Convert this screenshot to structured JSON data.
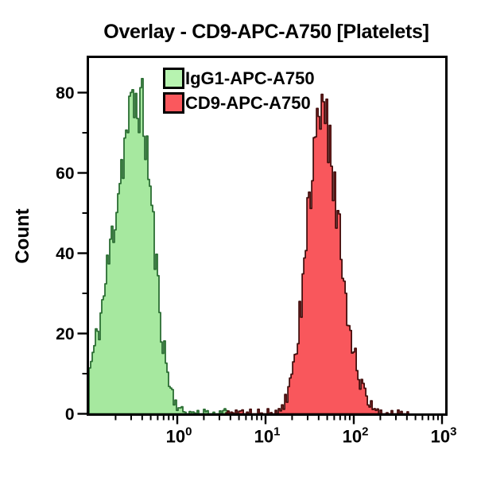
{
  "title": "Overlay - CD9-APC-A750 [Platelets]",
  "legend": {
    "items": [
      {
        "label": "IgG1-APC-A750",
        "swatch_fill": "#b7f3b0",
        "swatch_border": "#000000"
      },
      {
        "label": "CD9-APC-A750",
        "swatch_fill": "#fa585d",
        "swatch_border": "#000000"
      }
    ]
  },
  "chart_data": {
    "type": "area",
    "subtype": "flow-cytometry-histogram-overlay",
    "title": "Overlay - CD9-APC-A750 [Platelets]",
    "xlabel": "",
    "ylabel": "Count",
    "x_scale": "log10",
    "x_range_log": [
      -1,
      3.05
    ],
    "x_ticks": [
      {
        "log": 0,
        "base": "10",
        "exp": "0"
      },
      {
        "log": 1,
        "base": "10",
        "exp": "1"
      },
      {
        "log": 2,
        "base": "10",
        "exp": "2"
      },
      {
        "log": 3,
        "base": "10",
        "exp": "3"
      }
    ],
    "x_minor_decades": [
      -1,
      0,
      1,
      2
    ],
    "ylim": [
      0,
      89
    ],
    "y_major_ticks": [
      0,
      20,
      40,
      60,
      80
    ],
    "y_minor_ticks": [
      10,
      30,
      50,
      70
    ],
    "grid": false,
    "legend_position": "top-left-inside",
    "series": [
      {
        "name": "IgG1-APC-A750",
        "fill": "#a6e89f",
        "stroke": "#2b6e33",
        "range_log": [
          -1.0,
          0.6
        ],
        "peak_log": -0.45,
        "mode_x": 0.35,
        "peak_count": 78,
        "max_spike_count": 85,
        "sigma_left": 0.28,
        "sigma_right": 0.165,
        "noise_amp": 1.0,
        "seed": 11
      },
      {
        "name": "CD9-APC-A750",
        "fill": "#f9575c",
        "stroke": "#46100f",
        "range_log": [
          0.55,
          2.62
        ],
        "peak_log": 1.62,
        "mode_x": 42,
        "peak_count": 74,
        "max_spike_count": 80,
        "sigma_left": 0.16,
        "sigma_right": 0.21,
        "noise_amp": 1.0,
        "seed": 97
      }
    ]
  }
}
